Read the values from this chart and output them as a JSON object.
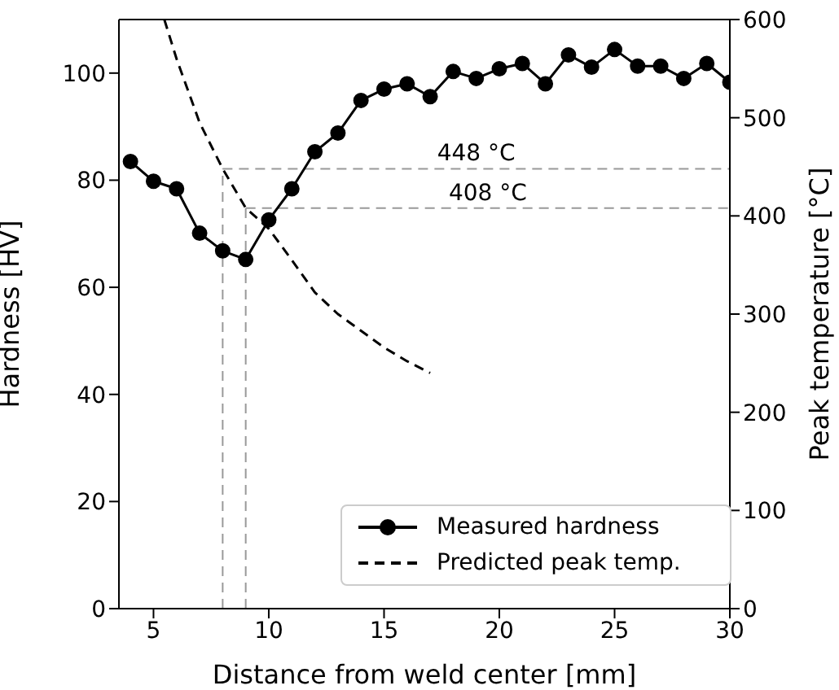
{
  "chart_data": {
    "type": "line",
    "xlabel": "Distance from weld center [mm]",
    "ylabel": "Hardness [HV]",
    "y2label": "Peak temperature [°C]",
    "xlim": [
      3.5,
      30
    ],
    "xticks": [
      5,
      10,
      15,
      20,
      25,
      30
    ],
    "ylim": [
      0,
      110
    ],
    "yticks": [
      0,
      20,
      40,
      60,
      80,
      100
    ],
    "y2lim": [
      0,
      600
    ],
    "y2ticks": [
      0,
      100,
      200,
      300,
      400,
      500,
      600
    ],
    "legend": "bottom right",
    "series": [
      {
        "name": "Measured hardness",
        "color": "#000000",
        "marker": "circle",
        "line_style": "solid",
        "x": [
          4,
          5,
          6,
          7,
          8,
          9,
          10,
          11,
          12,
          13,
          14,
          15,
          16,
          17,
          18,
          19,
          20,
          21,
          22,
          23,
          24,
          25,
          26,
          27,
          28,
          29,
          30
        ],
        "values": [
          83.5,
          79.8,
          78.4,
          70.1,
          66.8,
          65.2,
          72.6,
          78.4,
          85.3,
          88.8,
          94.9,
          97,
          98,
          95.6,
          100.3,
          99,
          100.8,
          101.8,
          98,
          103.4,
          101.1,
          104.4,
          101.3,
          101.3,
          99,
          101.8,
          98.3
        ]
      },
      {
        "name": "Predicted peak temp.",
        "color": "#000000",
        "marker": "none",
        "line_style": "dashed",
        "axis": "y2",
        "x": [
          5.47,
          6,
          7,
          8,
          9,
          10,
          11,
          12,
          13,
          14,
          15,
          16,
          17
        ],
        "values": [
          600,
          560,
          495,
          448,
          408,
          387,
          355,
          322,
          300,
          283,
          266,
          252,
          240
        ]
      }
    ],
    "ref_lines": [
      {
        "axis": "x",
        "value": 8,
        "label": null,
        "color": "#999999",
        "line_style": "dashed"
      },
      {
        "axis": "x",
        "value": 9,
        "label": null,
        "color": "#999999",
        "line_style": "dashed"
      },
      {
        "axis": "y2",
        "value": 448,
        "label": "448 °C",
        "color": "#999999",
        "line_style": "dashed"
      },
      {
        "axis": "y2",
        "value": 408,
        "label": "408 °C",
        "color": "#999999",
        "line_style": "dashed"
      }
    ]
  }
}
